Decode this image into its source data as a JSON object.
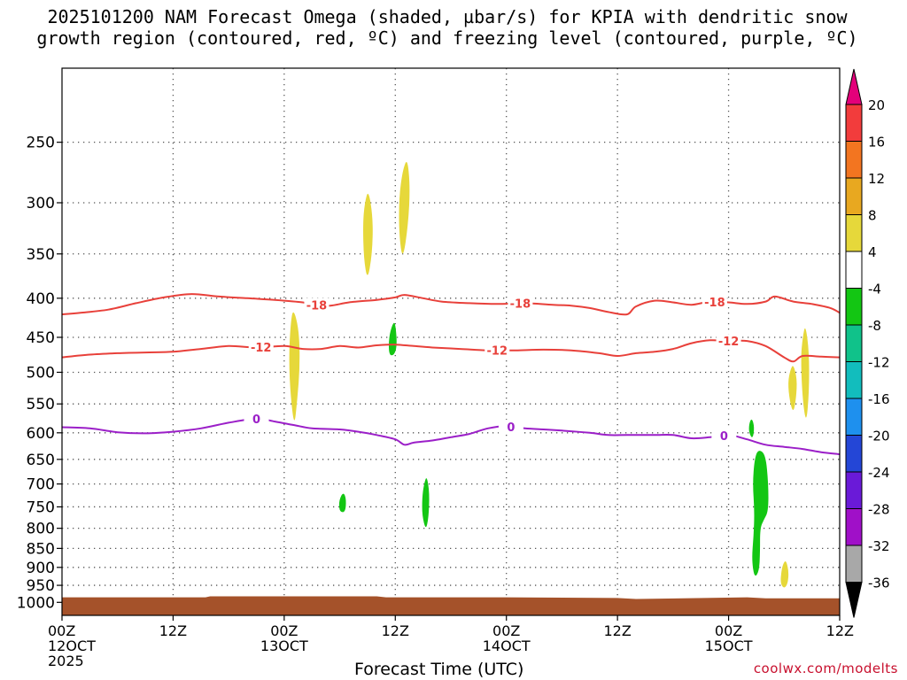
{
  "title": {
    "line1": "2025101200 NAM Forecast Omega (shaded, µbar/s) for KPIA with dendritic snow",
    "line2": "growth region (contoured, red, ºC) and freezing level (contoured, purple, ºC)"
  },
  "credit": "coolwx.com/modelts",
  "chart_data": {
    "type": "contour",
    "xlabel": "Forecast Time (UTC)",
    "ylabel": "",
    "x_range_hours": [
      0,
      84
    ],
    "x_ticks": [
      {
        "hour": 0,
        "lines": [
          "00Z",
          "12OCT",
          "2025"
        ]
      },
      {
        "hour": 12,
        "lines": [
          "12Z"
        ]
      },
      {
        "hour": 24,
        "lines": [
          "00Z",
          "13OCT"
        ]
      },
      {
        "hour": 36,
        "lines": [
          "12Z"
        ]
      },
      {
        "hour": 48,
        "lines": [
          "00Z",
          "14OCT"
        ]
      },
      {
        "hour": 60,
        "lines": [
          "12Z"
        ]
      },
      {
        "hour": 72,
        "lines": [
          "00Z",
          "15OCT"
        ]
      },
      {
        "hour": 84,
        "lines": [
          "12Z"
        ]
      }
    ],
    "y_axis": {
      "unit": "hPa",
      "scale": "log",
      "inverted": true,
      "range": [
        200,
        1040
      ],
      "ticks": [
        250,
        300,
        350,
        400,
        450,
        500,
        550,
        600,
        650,
        700,
        750,
        800,
        850,
        900,
        950,
        1000
      ]
    },
    "grid": true,
    "colorbar": {
      "levels": [
        20,
        16,
        12,
        8,
        4,
        -4,
        -8,
        -12,
        -16,
        -20,
        -24,
        -28,
        -32,
        -36
      ],
      "bins": [
        {
          "color": "#e3007a",
          "label": ">20"
        },
        {
          "color": "#f23c3c",
          "label": "16 to 20"
        },
        {
          "color": "#f37520",
          "label": "12 to 16"
        },
        {
          "color": "#e8a820",
          "label": "8 to 12"
        },
        {
          "color": "#e6d83a",
          "label": "4 to 8"
        },
        {
          "color": "#ffffff",
          "label": "-4 to 4"
        },
        {
          "color": "#13c613",
          "label": "-8 to -4"
        },
        {
          "color": "#10c28a",
          "label": "-12 to -8"
        },
        {
          "color": "#12bdbd",
          "label": "-16 to -12"
        },
        {
          "color": "#1e90ee",
          "label": "-20 to -16"
        },
        {
          "color": "#2446d6",
          "label": "-24 to -20"
        },
        {
          "color": "#6a1ad8",
          "label": "-28 to -24"
        },
        {
          "color": "#a010c8",
          "label": "-32 to -28"
        },
        {
          "color": "#a8a8a8",
          "label": "-36 to -32"
        },
        {
          "color": "#000000",
          "label": "<-36"
        }
      ]
    },
    "contours": [
      {
        "value": -18,
        "label": "-18",
        "color": "#e8403a",
        "points": [
          [
            0,
            420
          ],
          [
            2,
            418
          ],
          [
            5,
            414
          ],
          [
            8,
            406
          ],
          [
            11,
            399
          ],
          [
            14,
            395
          ],
          [
            17,
            398
          ],
          [
            20,
            400
          ],
          [
            23,
            402
          ],
          [
            26,
            405
          ],
          [
            27,
            408
          ],
          [
            29,
            409
          ],
          [
            31,
            405
          ],
          [
            34,
            402
          ],
          [
            36,
            399
          ],
          [
            37,
            396
          ],
          [
            39,
            400
          ],
          [
            41,
            404
          ],
          [
            44,
            406
          ],
          [
            47,
            407
          ],
          [
            50,
            406
          ],
          [
            53,
            408
          ],
          [
            55,
            409
          ],
          [
            57,
            412
          ],
          [
            59,
            417
          ],
          [
            61,
            420
          ],
          [
            62,
            410
          ],
          [
            64,
            403
          ],
          [
            66,
            405
          ],
          [
            68,
            408
          ],
          [
            70,
            404
          ],
          [
            72,
            405
          ],
          [
            74,
            407
          ],
          [
            76,
            404
          ],
          [
            77,
            398
          ],
          [
            79,
            404
          ],
          [
            81,
            407
          ],
          [
            83,
            412
          ],
          [
            84,
            418
          ]
        ]
      },
      {
        "value": -12,
        "label": "-12",
        "color": "#e8403a",
        "points": [
          [
            0,
            478
          ],
          [
            3,
            474
          ],
          [
            6,
            472
          ],
          [
            9,
            471
          ],
          [
            12,
            470
          ],
          [
            15,
            466
          ],
          [
            18,
            462
          ],
          [
            21,
            464
          ],
          [
            24,
            462
          ],
          [
            26,
            466
          ],
          [
            28,
            466
          ],
          [
            30,
            462
          ],
          [
            32,
            464
          ],
          [
            34,
            461
          ],
          [
            36,
            460
          ],
          [
            38,
            462
          ],
          [
            40,
            464
          ],
          [
            43,
            466
          ],
          [
            46,
            468
          ],
          [
            49,
            468
          ],
          [
            52,
            467
          ],
          [
            55,
            468
          ],
          [
            58,
            472
          ],
          [
            60,
            476
          ],
          [
            62,
            472
          ],
          [
            64,
            470
          ],
          [
            66,
            466
          ],
          [
            68,
            458
          ],
          [
            70,
            454
          ],
          [
            72,
            455
          ],
          [
            74,
            455
          ],
          [
            76,
            462
          ],
          [
            78,
            478
          ],
          [
            79,
            484
          ],
          [
            80,
            476
          ],
          [
            82,
            477
          ],
          [
            84,
            478
          ]
        ]
      },
      {
        "value": 0,
        "label": "0",
        "color": "#9b1fc8",
        "points": [
          [
            0,
            590
          ],
          [
            3,
            592
          ],
          [
            6,
            599
          ],
          [
            9,
            601
          ],
          [
            12,
            598
          ],
          [
            15,
            592
          ],
          [
            18,
            582
          ],
          [
            21,
            575
          ],
          [
            23,
            580
          ],
          [
            25,
            586
          ],
          [
            27,
            592
          ],
          [
            30,
            594
          ],
          [
            32,
            598
          ],
          [
            34,
            604
          ],
          [
            36,
            612
          ],
          [
            37,
            622
          ],
          [
            38,
            618
          ],
          [
            40,
            614
          ],
          [
            42,
            608
          ],
          [
            44,
            602
          ],
          [
            46,
            592
          ],
          [
            48,
            588
          ],
          [
            50,
            592
          ],
          [
            52,
            594
          ],
          [
            54,
            596
          ],
          [
            57,
            600
          ],
          [
            59,
            604
          ],
          [
            61,
            604
          ],
          [
            64,
            604
          ],
          [
            66,
            604
          ],
          [
            68,
            610
          ],
          [
            70,
            608
          ],
          [
            72,
            604
          ],
          [
            74,
            612
          ],
          [
            76,
            622
          ],
          [
            78,
            626
          ],
          [
            80,
            630
          ],
          [
            82,
            636
          ],
          [
            84,
            640
          ]
        ]
      }
    ],
    "shaded_regions": [
      {
        "bin": "4 to 8",
        "pts": [
          [
            25.0,
            412
          ],
          [
            25.6,
            440
          ],
          [
            25.7,
            490
          ],
          [
            25.4,
            545
          ],
          [
            25.1,
            590
          ],
          [
            24.7,
            540
          ],
          [
            24.5,
            480
          ],
          [
            24.7,
            430
          ]
        ]
      },
      {
        "bin": "4 to 8",
        "pts": [
          [
            33.1,
            288
          ],
          [
            33.6,
            315
          ],
          [
            33.5,
            350
          ],
          [
            33.0,
            380
          ],
          [
            32.6,
            355
          ],
          [
            32.5,
            320
          ],
          [
            32.7,
            300
          ]
        ]
      },
      {
        "bin": "4 to 8",
        "pts": [
          [
            37.3,
            262
          ],
          [
            37.6,
            285
          ],
          [
            37.4,
            320
          ],
          [
            36.8,
            358
          ],
          [
            36.4,
            330
          ],
          [
            36.4,
            295
          ],
          [
            36.8,
            272
          ]
        ]
      },
      {
        "bin": "4 to 8",
        "pts": [
          [
            79.0,
            488
          ],
          [
            79.4,
            510
          ],
          [
            79.3,
            540
          ],
          [
            79.0,
            566
          ],
          [
            78.6,
            545
          ],
          [
            78.4,
            515
          ],
          [
            78.7,
            495
          ]
        ]
      },
      {
        "bin": "4 to 8",
        "pts": [
          [
            80.3,
            432
          ],
          [
            80.7,
            470
          ],
          [
            80.7,
            530
          ],
          [
            80.4,
            585
          ],
          [
            80.0,
            545
          ],
          [
            79.8,
            480
          ],
          [
            80.0,
            450
          ]
        ]
      },
      {
        "bin": "4 to 8",
        "pts": [
          [
            78.2,
            880
          ],
          [
            78.5,
            910
          ],
          [
            78.4,
            945
          ],
          [
            78.0,
            960
          ],
          [
            77.6,
            945
          ],
          [
            77.7,
            910
          ],
          [
            77.9,
            890
          ]
        ]
      },
      {
        "bin": "-8 to -4",
        "pts": [
          [
            36.0,
            430
          ],
          [
            36.2,
            460
          ],
          [
            35.9,
            475
          ],
          [
            35.3,
            475
          ],
          [
            35.3,
            450
          ],
          [
            35.7,
            432
          ]
        ]
      },
      {
        "bin": "-8 to -4",
        "pts": [
          [
            30.5,
            720
          ],
          [
            30.7,
            735
          ],
          [
            30.6,
            762
          ],
          [
            30.0,
            762
          ],
          [
            29.9,
            740
          ],
          [
            30.2,
            722
          ]
        ]
      },
      {
        "bin": "-8 to -4",
        "pts": [
          [
            39.4,
            682
          ],
          [
            39.7,
            720
          ],
          [
            39.6,
            775
          ],
          [
            39.3,
            805
          ],
          [
            38.9,
            770
          ],
          [
            38.9,
            730
          ],
          [
            39.1,
            700
          ]
        ]
      },
      {
        "bin": "-8 to -4",
        "pts": [
          [
            74.5,
            573
          ],
          [
            74.8,
            590
          ],
          [
            74.6,
            612
          ],
          [
            74.2,
            600
          ],
          [
            74.2,
            585
          ]
        ]
      },
      {
        "bin": "-8 to -4",
        "pts": [
          [
            75.2,
            630
          ],
          [
            76.0,
            640
          ],
          [
            76.3,
            700
          ],
          [
            76.3,
            760
          ],
          [
            75.8,
            780
          ],
          [
            75.4,
            800
          ],
          [
            75.4,
            860
          ],
          [
            75.3,
            910
          ],
          [
            74.8,
            930
          ],
          [
            74.5,
            880
          ],
          [
            74.7,
            820
          ],
          [
            74.8,
            760
          ],
          [
            74.6,
            700
          ],
          [
            74.8,
            650
          ]
        ]
      }
    ],
    "terrain": {
      "color": "#a5522a",
      "pressure_top": [
        [
          0,
          985
        ],
        [
          15.5,
          985
        ],
        [
          16,
          982
        ],
        [
          34,
          982
        ],
        [
          35,
          985
        ],
        [
          48,
          985
        ],
        [
          60,
          987
        ],
        [
          62,
          990
        ],
        [
          67,
          988
        ],
        [
          74,
          985
        ],
        [
          76,
          988
        ],
        [
          84,
          988
        ]
      ]
    }
  }
}
